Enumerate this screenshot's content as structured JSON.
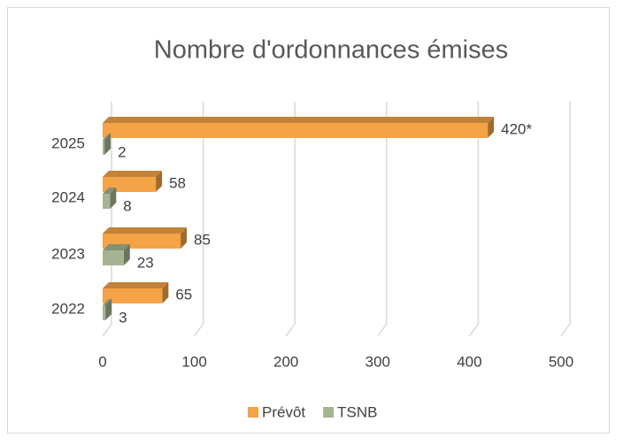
{
  "chart_data": {
    "type": "hbar3d",
    "title": "Nombre d'ordonnances émises",
    "categories": [
      "2022",
      "2023",
      "2024",
      "2025"
    ],
    "series": [
      {
        "name": "Prévôt",
        "color": "#f4a347",
        "values": [
          65,
          85,
          58,
          420
        ],
        "value_labels": [
          "65",
          "85",
          "58",
          "420*"
        ]
      },
      {
        "name": "TSNB",
        "color": "#a5b592",
        "values": [
          3,
          23,
          8,
          2
        ]
      }
    ],
    "xlim": [
      0,
      500
    ],
    "xticks": [
      0,
      100,
      200,
      300,
      400,
      500
    ],
    "grid": true,
    "legend": "bottom"
  }
}
